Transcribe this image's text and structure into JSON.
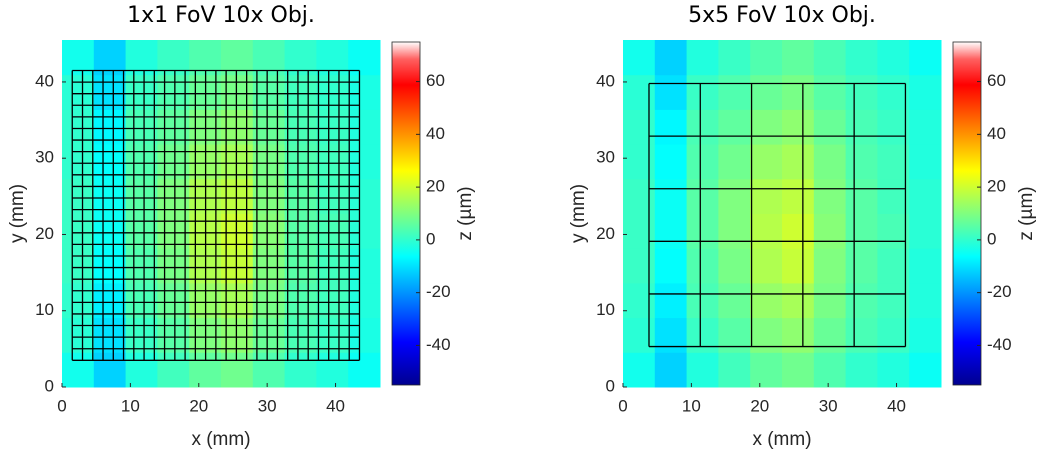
{
  "chart_data": [
    {
      "type": "heatmap",
      "title": "1x1 FoV 10x Obj.",
      "xlabel": "x (mm)",
      "ylabel": "y (mm)",
      "xlim": [
        0,
        46.5
      ],
      "ylim": [
        0,
        45.5
      ],
      "xticks": [
        0,
        10,
        20,
        30,
        40
      ],
      "yticks": [
        0,
        10,
        20,
        30,
        40
      ],
      "colormap": "jet",
      "clim": [
        -55,
        75
      ],
      "cticks": [
        -40,
        -20,
        0,
        20,
        40,
        60
      ],
      "clabel": "z (µm)",
      "z": [
        [
          -4,
          -12,
          -2,
          2,
          6,
          8,
          4,
          0,
          -2,
          -5
        ],
        [
          -1,
          -10,
          1,
          5,
          10,
          12,
          7,
          3,
          1,
          -3
        ],
        [
          0,
          -8,
          3,
          7,
          13,
          15,
          9,
          4,
          2,
          -2
        ],
        [
          1,
          -6,
          4,
          9,
          16,
          19,
          10,
          5,
          2,
          -2
        ],
        [
          1,
          -5,
          5,
          10,
          17,
          20,
          11,
          5,
          3,
          -1
        ],
        [
          1,
          -5,
          5,
          10,
          16,
          18,
          10,
          5,
          2,
          -1
        ],
        [
          0,
          -6,
          4,
          8,
          13,
          15,
          9,
          4,
          2,
          -2
        ],
        [
          0,
          -7,
          3,
          6,
          10,
          12,
          7,
          3,
          1,
          -2
        ],
        [
          -1,
          -10,
          1,
          4,
          7,
          9,
          5,
          2,
          0,
          -3
        ],
        [
          -4,
          -12,
          -2,
          1,
          4,
          6,
          3,
          0,
          -2,
          -5
        ]
      ],
      "fov_grid": {
        "x_range": [
          1.5,
          43.5
        ],
        "y_range": [
          3.5,
          41.5
        ],
        "cols": 28,
        "rows": 25
      }
    },
    {
      "type": "heatmap",
      "title": "5x5 FoV 10x Obj.",
      "xlabel": "x (mm)",
      "ylabel": "y (mm)",
      "xlim": [
        0,
        46.5
      ],
      "ylim": [
        0,
        45.5
      ],
      "xticks": [
        0,
        10,
        20,
        30,
        40
      ],
      "yticks": [
        0,
        10,
        20,
        30,
        40
      ],
      "colormap": "jet",
      "clim": [
        -55,
        75
      ],
      "cticks": [
        -40,
        -20,
        0,
        20,
        40,
        60
      ],
      "clabel": "z (µm)",
      "z": [
        [
          -4,
          -12,
          -2,
          2,
          6,
          8,
          4,
          0,
          -2,
          -5
        ],
        [
          -1,
          -10,
          1,
          5,
          10,
          12,
          7,
          3,
          1,
          -3
        ],
        [
          0,
          -8,
          3,
          7,
          13,
          15,
          9,
          4,
          2,
          -2
        ],
        [
          1,
          -6,
          4,
          9,
          16,
          19,
          10,
          5,
          2,
          -2
        ],
        [
          1,
          -5,
          5,
          10,
          17,
          20,
          11,
          5,
          3,
          -1
        ],
        [
          1,
          -5,
          5,
          10,
          16,
          18,
          10,
          5,
          2,
          -1
        ],
        [
          0,
          -6,
          4,
          8,
          13,
          15,
          9,
          4,
          2,
          -2
        ],
        [
          0,
          -7,
          3,
          6,
          10,
          12,
          7,
          3,
          1,
          -2
        ],
        [
          -1,
          -10,
          1,
          4,
          7,
          9,
          5,
          2,
          0,
          -3
        ],
        [
          -4,
          -12,
          -2,
          1,
          4,
          6,
          3,
          0,
          -2,
          -5
        ]
      ],
      "fov_grid": {
        "x_range": [
          3.8,
          41.3
        ],
        "y_range": [
          5.3,
          39.8
        ],
        "cols": 5,
        "rows": 5
      }
    }
  ]
}
